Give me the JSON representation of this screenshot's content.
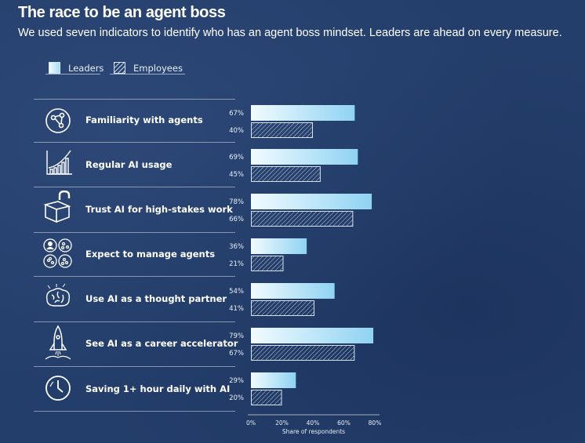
{
  "header": {
    "title": "The race to be an agent boss",
    "subtitle": "We used seven indicators to identify who has an agent boss mindset. Leaders are ahead on every measure."
  },
  "legend": {
    "leaders_label": "Leaders",
    "employees_label": "Employees"
  },
  "rows": [
    {
      "label": "Familiarity with agents",
      "icon": "network-icon",
      "leaders_pct": "67%",
      "employees_pct": "40%"
    },
    {
      "label": "Regular AI usage",
      "icon": "bar-growth-icon",
      "leaders_pct": "69%",
      "employees_pct": "45%"
    },
    {
      "label": "Trust AI for high-stakes work",
      "icon": "unlocked-box-icon",
      "leaders_pct": "78%",
      "employees_pct": "66%"
    },
    {
      "label": "Expect to manage agents",
      "icon": "team-agents-icon",
      "leaders_pct": "36%",
      "employees_pct": "21%"
    },
    {
      "label": "Use AI as a thought partner",
      "icon": "brain-icon",
      "leaders_pct": "54%",
      "employees_pct": "41%"
    },
    {
      "label": "See AI as a career accelerator",
      "icon": "rocket-icon",
      "leaders_pct": "79%",
      "employees_pct": "67%"
    },
    {
      "label": "Saving 1+ hour daily with AI",
      "icon": "clock-icon",
      "leaders_pct": "29%",
      "employees_pct": "20%"
    }
  ],
  "colors": {
    "background": "#243e6b",
    "leaders_fill_start": "#f2fbff",
    "leaders_fill_end": "#8fd3f2",
    "employees_stroke": "#d6e2f0",
    "text": "#ffffff"
  },
  "chart_data": {
    "type": "bar",
    "orientation": "horizontal",
    "title": "The race to be an agent boss",
    "subtitle": "We used seven indicators to identify who has an agent boss mindset. Leaders are ahead on every measure.",
    "categories": [
      "Familiarity with agents",
      "Regular AI usage",
      "Trust AI for high-stakes work",
      "Expect to manage agents",
      "Use AI as a thought partner",
      "See AI as a career accelerator",
      "Saving 1+ hour daily with AI"
    ],
    "series": [
      {
        "name": "Leaders",
        "values": [
          67,
          69,
          78,
          36,
          54,
          79,
          29
        ]
      },
      {
        "name": "Employees",
        "values": [
          40,
          45,
          66,
          21,
          41,
          67,
          20
        ]
      }
    ],
    "xlabel": "Share of respondents",
    "ylabel": "",
    "xlim": [
      0,
      80
    ],
    "xticks": [
      "0%",
      "20%",
      "40%",
      "60%",
      "80%"
    ],
    "grid": false,
    "legend_position": "top-left"
  }
}
